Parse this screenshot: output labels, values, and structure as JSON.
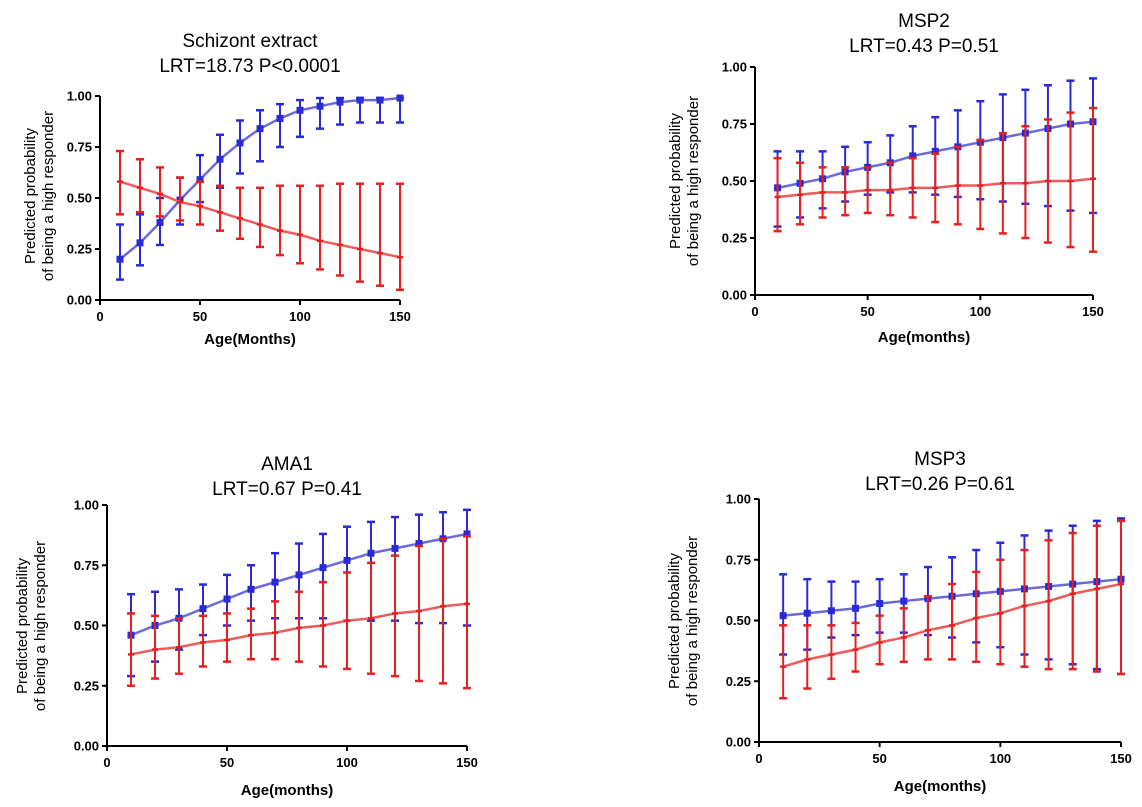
{
  "colors": {
    "blue_series": "#2b2bd6",
    "red_series": "#e42020",
    "blue_line": "#6a6ad8",
    "red_line": "#ef5a5a",
    "axis": "#000000"
  },
  "chart_data": [
    {
      "type": "line",
      "title": "Schizont extract",
      "subtitle": "LRT=18.73 P<0.0001",
      "xlabel": "Age(Months)",
      "ylabel": [
        "Predicted probability",
        "of being a high responder"
      ],
      "xlim": [
        0,
        150
      ],
      "ylim": [
        0,
        1
      ],
      "xticks": [
        0,
        50,
        100,
        150
      ],
      "yticks": [
        "0.00",
        "0.25",
        "0.50",
        "0.75",
        "1.00"
      ],
      "x": [
        10,
        20,
        30,
        40,
        50,
        60,
        70,
        80,
        90,
        100,
        110,
        120,
        130,
        140,
        150
      ],
      "series": [
        {
          "color": "blue",
          "values": [
            0.2,
            0.28,
            0.38,
            0.49,
            0.59,
            0.69,
            0.77,
            0.84,
            0.89,
            0.93,
            0.95,
            0.97,
            0.98,
            0.98,
            0.99
          ],
          "lower": [
            0.1,
            0.17,
            0.27,
            0.37,
            0.48,
            0.55,
            0.62,
            0.68,
            0.75,
            0.8,
            0.84,
            0.86,
            0.87,
            0.87,
            0.87
          ],
          "upper": [
            0.37,
            0.42,
            0.5,
            0.6,
            0.71,
            0.81,
            0.88,
            0.93,
            0.96,
            0.98,
            0.99,
            0.99,
            0.99,
            0.99,
            0.99
          ]
        },
        {
          "color": "red",
          "values": [
            0.58,
            0.55,
            0.52,
            0.48,
            0.46,
            0.43,
            0.4,
            0.37,
            0.34,
            0.32,
            0.29,
            0.27,
            0.25,
            0.23,
            0.21
          ],
          "lower": [
            0.42,
            0.43,
            0.41,
            0.39,
            0.37,
            0.34,
            0.3,
            0.26,
            0.22,
            0.18,
            0.15,
            0.12,
            0.09,
            0.07,
            0.05
          ],
          "upper": [
            0.73,
            0.69,
            0.65,
            0.6,
            0.58,
            0.56,
            0.55,
            0.55,
            0.56,
            0.56,
            0.56,
            0.57,
            0.57,
            0.57,
            0.57
          ]
        }
      ]
    },
    {
      "type": "line",
      "title": "MSP2",
      "subtitle": "LRT=0.43 P=0.51",
      "xlabel": "Age(months)",
      "ylabel": [
        "Predicted probability",
        "of being a high responder"
      ],
      "xlim": [
        0,
        150
      ],
      "ylim": [
        0,
        1
      ],
      "xticks": [
        0,
        50,
        100,
        150
      ],
      "yticks": [
        "0.00",
        "0.25",
        "0.50",
        "0.75",
        "1.00"
      ],
      "x": [
        10,
        20,
        30,
        40,
        50,
        60,
        70,
        80,
        90,
        100,
        110,
        120,
        130,
        140,
        150
      ],
      "series": [
        {
          "color": "blue",
          "values": [
            0.47,
            0.49,
            0.51,
            0.54,
            0.56,
            0.58,
            0.61,
            0.63,
            0.65,
            0.67,
            0.69,
            0.71,
            0.73,
            0.75,
            0.76
          ],
          "lower": [
            0.3,
            0.34,
            0.38,
            0.41,
            0.44,
            0.45,
            0.45,
            0.44,
            0.43,
            0.42,
            0.41,
            0.4,
            0.39,
            0.37,
            0.36
          ],
          "upper": [
            0.63,
            0.63,
            0.63,
            0.65,
            0.67,
            0.7,
            0.74,
            0.78,
            0.81,
            0.85,
            0.88,
            0.9,
            0.92,
            0.94,
            0.95
          ]
        },
        {
          "color": "red",
          "values": [
            0.43,
            0.44,
            0.45,
            0.45,
            0.46,
            0.46,
            0.47,
            0.47,
            0.48,
            0.48,
            0.49,
            0.49,
            0.5,
            0.5,
            0.51
          ],
          "lower": [
            0.28,
            0.31,
            0.34,
            0.35,
            0.36,
            0.35,
            0.34,
            0.32,
            0.31,
            0.29,
            0.27,
            0.25,
            0.23,
            0.21,
            0.19
          ],
          "upper": [
            0.6,
            0.58,
            0.56,
            0.56,
            0.56,
            0.58,
            0.6,
            0.62,
            0.65,
            0.68,
            0.71,
            0.74,
            0.77,
            0.8,
            0.82
          ]
        }
      ]
    },
    {
      "type": "line",
      "title": "AMA1",
      "subtitle": "LRT=0.67 P=0.41",
      "xlabel": "Age(months)",
      "ylabel": [
        "Predicted probability",
        "of being a high responder"
      ],
      "xlim": [
        0,
        150
      ],
      "ylim": [
        0,
        1
      ],
      "xticks": [
        0,
        50,
        100,
        150
      ],
      "yticks": [
        "0.00",
        "0.25",
        "0.50",
        "0.75",
        "1.00"
      ],
      "x": [
        10,
        20,
        30,
        40,
        50,
        60,
        70,
        80,
        90,
        100,
        110,
        120,
        130,
        140,
        150
      ],
      "series": [
        {
          "color": "blue",
          "values": [
            0.46,
            0.5,
            0.53,
            0.57,
            0.61,
            0.65,
            0.68,
            0.71,
            0.74,
            0.77,
            0.8,
            0.82,
            0.84,
            0.86,
            0.88
          ],
          "lower": [
            0.29,
            0.35,
            0.4,
            0.46,
            0.5,
            0.52,
            0.53,
            0.53,
            0.53,
            0.52,
            0.52,
            0.52,
            0.51,
            0.51,
            0.5
          ],
          "upper": [
            0.63,
            0.64,
            0.65,
            0.67,
            0.71,
            0.75,
            0.8,
            0.84,
            0.88,
            0.91,
            0.93,
            0.95,
            0.96,
            0.97,
            0.98
          ]
        },
        {
          "color": "red",
          "values": [
            0.38,
            0.4,
            0.41,
            0.43,
            0.44,
            0.46,
            0.47,
            0.49,
            0.5,
            0.52,
            0.53,
            0.55,
            0.56,
            0.58,
            0.59
          ],
          "lower": [
            0.25,
            0.28,
            0.3,
            0.33,
            0.35,
            0.36,
            0.36,
            0.35,
            0.33,
            0.32,
            0.3,
            0.29,
            0.27,
            0.26,
            0.24
          ],
          "upper": [
            0.55,
            0.54,
            0.53,
            0.54,
            0.55,
            0.57,
            0.6,
            0.64,
            0.68,
            0.72,
            0.76,
            0.79,
            0.83,
            0.86,
            0.87
          ]
        }
      ]
    },
    {
      "type": "line",
      "title": "MSP3",
      "subtitle": "LRT=0.26 P=0.61",
      "xlabel": "Age(months)",
      "ylabel": [
        "Predicted probability",
        "of being a high responder"
      ],
      "xlim": [
        0,
        150
      ],
      "ylim": [
        0,
        1
      ],
      "xticks": [
        0,
        50,
        100,
        150
      ],
      "yticks": [
        "0.00",
        "0.25",
        "0.50",
        "0.75",
        "1.00"
      ],
      "x": [
        10,
        20,
        30,
        40,
        50,
        60,
        70,
        80,
        90,
        100,
        110,
        120,
        130,
        140,
        150
      ],
      "series": [
        {
          "color": "blue",
          "values": [
            0.52,
            0.53,
            0.54,
            0.55,
            0.57,
            0.58,
            0.59,
            0.6,
            0.61,
            0.62,
            0.63,
            0.64,
            0.65,
            0.66,
            0.67
          ],
          "lower": [
            0.36,
            0.38,
            0.43,
            0.44,
            0.45,
            0.45,
            0.44,
            0.43,
            0.41,
            0.39,
            0.36,
            0.34,
            0.32,
            0.3,
            0.28
          ],
          "upper": [
            0.69,
            0.67,
            0.66,
            0.66,
            0.67,
            0.69,
            0.72,
            0.76,
            0.79,
            0.82,
            0.85,
            0.87,
            0.89,
            0.91,
            0.92
          ]
        },
        {
          "color": "red",
          "values": [
            0.31,
            0.34,
            0.36,
            0.38,
            0.41,
            0.43,
            0.46,
            0.48,
            0.51,
            0.53,
            0.56,
            0.58,
            0.61,
            0.63,
            0.65
          ],
          "lower": [
            0.18,
            0.22,
            0.26,
            0.29,
            0.32,
            0.33,
            0.34,
            0.34,
            0.33,
            0.32,
            0.31,
            0.3,
            0.3,
            0.29,
            0.28
          ],
          "upper": [
            0.48,
            0.48,
            0.48,
            0.49,
            0.52,
            0.55,
            0.6,
            0.65,
            0.7,
            0.75,
            0.79,
            0.83,
            0.86,
            0.89,
            0.91
          ]
        }
      ]
    }
  ]
}
